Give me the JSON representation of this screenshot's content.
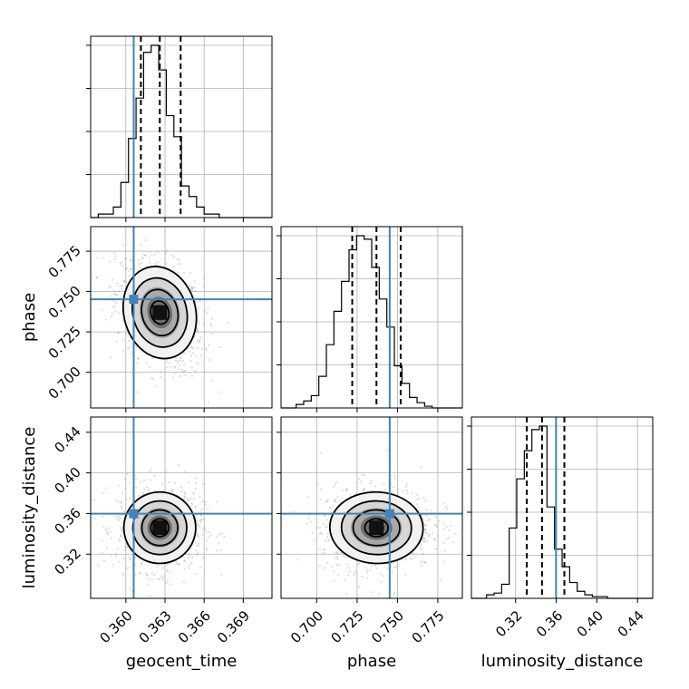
{
  "chart_data": {
    "type": "corner",
    "parameters": [
      "geocent_time",
      "phase",
      "luminosity_distance"
    ],
    "truths": [
      0.3606,
      0.7452,
      0.3598
    ],
    "colors": {
      "truth": "#4682b4",
      "hist": "#000000",
      "grid": "#b0b0b0",
      "points": "#9a9a9a"
    },
    "ranges": [
      [
        0.3573,
        0.3712
      ],
      [
        0.6779,
        0.7902
      ],
      [
        0.2765,
        0.455
      ]
    ],
    "ticks": [
      [
        "0.360",
        "0.363",
        "0.366",
        "0.369"
      ],
      [
        "0.700",
        "0.725",
        "0.750",
        "0.775"
      ],
      [
        "0.32",
        "0.36",
        "0.40",
        "0.44"
      ]
    ],
    "quantiles": [
      [
        0.36115,
        0.3626,
        0.3642
      ],
      [
        0.722,
        0.737,
        0.752
      ],
      [
        0.331,
        0.346,
        0.368
      ]
    ],
    "histograms": [
      {
        "bin_start": 0.3573,
        "bin_width": 0.00058,
        "counts": [
          0,
          2,
          2,
          6,
          20,
          45,
          68,
          94,
          98,
          84,
          58,
          46,
          18,
          12,
          6,
          2,
          2,
          0,
          0,
          0,
          0,
          0,
          0,
          0
        ]
      },
      {
        "bin_start": 0.6779,
        "bin_width": 0.00468,
        "counts": [
          0,
          0,
          2,
          4,
          7,
          18,
          36,
          55,
          72,
          90,
          98,
          96,
          80,
          62,
          46,
          24,
          14,
          6,
          3,
          1,
          0,
          0,
          0,
          0
        ]
      },
      {
        "bin_start": 0.2765,
        "bin_width": 0.00744,
        "counts": [
          0,
          0,
          2,
          3,
          8,
          40,
          68,
          84,
          96,
          98,
          52,
          28,
          18,
          9,
          4,
          2,
          1,
          1,
          0,
          0,
          0,
          0,
          0,
          0
        ]
      }
    ],
    "contours_2d": [
      {
        "x_param": "geocent_time",
        "y_param": "phase",
        "mean": [
          0.3626,
          0.737
        ],
        "sd": [
          0.00145,
          0.0152
        ],
        "correlation": -0.35,
        "levels": [
          0.5,
          1.0,
          1.5,
          2.0
        ]
      },
      {
        "x_param": "geocent_time",
        "y_param": "luminosity_distance",
        "mean": [
          0.3626,
          0.346
        ],
        "sd": [
          0.00145,
          0.0185
        ],
        "correlation": 0.0,
        "levels": [
          0.5,
          1.0,
          1.5,
          2.0
        ]
      },
      {
        "x_param": "phase",
        "y_param": "luminosity_distance",
        "mean": [
          0.737,
          0.346
        ],
        "sd": [
          0.0152,
          0.0185
        ],
        "correlation": 0.05,
        "levels": [
          0.5,
          1.0,
          1.5,
          2.0
        ]
      }
    ]
  }
}
